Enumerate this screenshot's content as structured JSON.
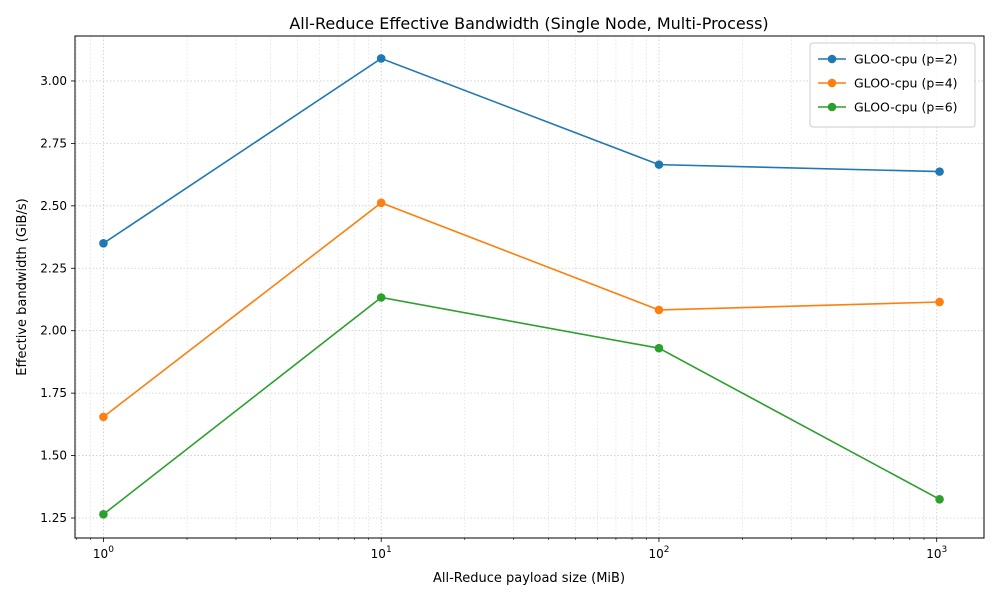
{
  "chart_data": {
    "type": "line",
    "title": "All-Reduce Effective Bandwidth (Single Node, Multi-Process)",
    "xlabel": "All-Reduce payload size (MiB)",
    "ylabel": "Effective bandwidth (GiB/s)",
    "xscale": "log",
    "x": [
      1,
      10,
      100,
      1024
    ],
    "xlim": [
      0.79,
      1480
    ],
    "ylim": [
      1.17,
      3.18
    ],
    "yticks": [
      1.25,
      1.5,
      1.75,
      2.0,
      2.25,
      2.5,
      2.75,
      3.0
    ],
    "ytick_labels": [
      "1.25",
      "1.50",
      "1.75",
      "2.00",
      "2.25",
      "2.50",
      "2.75",
      "3.00"
    ],
    "xticks": [
      1,
      10,
      100,
      1000
    ],
    "xtick_labels": [
      {
        "base": "10",
        "exp": "0"
      },
      {
        "base": "10",
        "exp": "1"
      },
      {
        "base": "10",
        "exp": "2"
      },
      {
        "base": "10",
        "exp": "3"
      }
    ],
    "grid": true,
    "legend_position": "top-right",
    "series": [
      {
        "name": "GLOO-cpu (p=2)",
        "color": "#1f77b4",
        "values": [
          2.35,
          3.09,
          2.665,
          2.637
        ]
      },
      {
        "name": "GLOO-cpu (p=4)",
        "color": "#ff7f0e",
        "values": [
          1.655,
          2.512,
          2.083,
          2.115
        ]
      },
      {
        "name": "GLOO-cpu (p=6)",
        "color": "#2ca02c",
        "values": [
          1.265,
          2.133,
          1.93,
          1.325
        ]
      }
    ]
  }
}
